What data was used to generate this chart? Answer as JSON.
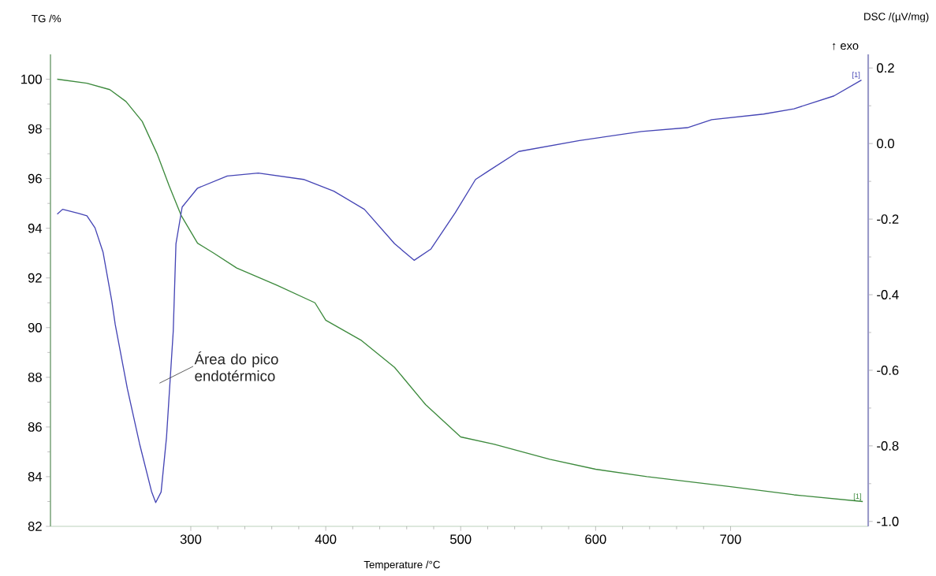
{
  "chart_data": {
    "type": "line",
    "xlabel": "Temperature /°C",
    "ylabel": "TG /%",
    "y2label": "DSC /(µV/mg)",
    "annotations": [
      "↑ exo",
      "Área do pico endotérmico"
    ],
    "xlim": [
      196,
      802
    ],
    "xticks": [
      300,
      400,
      500,
      600,
      700
    ],
    "ylim": [
      82,
      101
    ],
    "yticks": [
      82,
      84,
      86,
      88,
      90,
      92,
      94,
      96,
      98,
      100
    ],
    "y2lim": [
      -1.013,
      0.236
    ],
    "y2ticks": [
      {
        "value": -1,
        "label": "-1.0"
      },
      -0.8,
      -0.6,
      -0.4,
      -0.2,
      {
        "value": 0,
        "label": "0.0"
      },
      0.2
    ],
    "grid": false,
    "marker": "none",
    "line_style": "solid",
    "series": [
      {
        "name": "[1]",
        "color": "#3d8a3d",
        "x": [
          201,
          223,
          240,
          252,
          264,
          275,
          284,
          293,
          305,
          317,
          334,
          364,
          392,
          400,
          426,
          451,
          474,
          500,
          525,
          566,
          600,
          638,
          700,
          747,
          798
        ],
        "values": [
          100.0,
          99.84,
          99.58,
          99.1,
          98.3,
          97.0,
          95.7,
          94.5,
          93.4,
          93.0,
          92.4,
          91.7,
          91.0,
          90.3,
          89.5,
          88.4,
          86.9,
          85.6,
          85.3,
          84.7,
          84.3,
          84.0,
          83.6,
          83.27,
          83.0
        ]
      },
      {
        "name": "[1]",
        "axis": "y2",
        "color": "#4545b5",
        "x": [
          201,
          205,
          217,
          223,
          229,
          235,
          241.5,
          244,
          253,
          262,
          271,
          274,
          278,
          282,
          287,
          289,
          293.6,
          305,
          327,
          350,
          383.6,
          406,
          428.6,
          451,
          465.5,
          478,
          496,
          511,
          520,
          543,
          588,
          634,
          668,
          686,
          724.5,
          747,
          776.6,
          797
        ],
        "values": [
          -0.187,
          -0.174,
          -0.185,
          -0.191,
          -0.223,
          -0.288,
          -0.418,
          -0.479,
          -0.649,
          -0.794,
          -0.922,
          -0.95,
          -0.922,
          -0.777,
          -0.496,
          -0.265,
          -0.168,
          -0.118,
          -0.086,
          -0.078,
          -0.095,
          -0.126,
          -0.174,
          -0.265,
          -0.309,
          -0.279,
          -0.183,
          -0.095,
          -0.074,
          -0.021,
          0.008,
          0.032,
          0.042,
          0.063,
          0.078,
          0.092,
          0.126,
          0.168
        ]
      }
    ]
  }
}
